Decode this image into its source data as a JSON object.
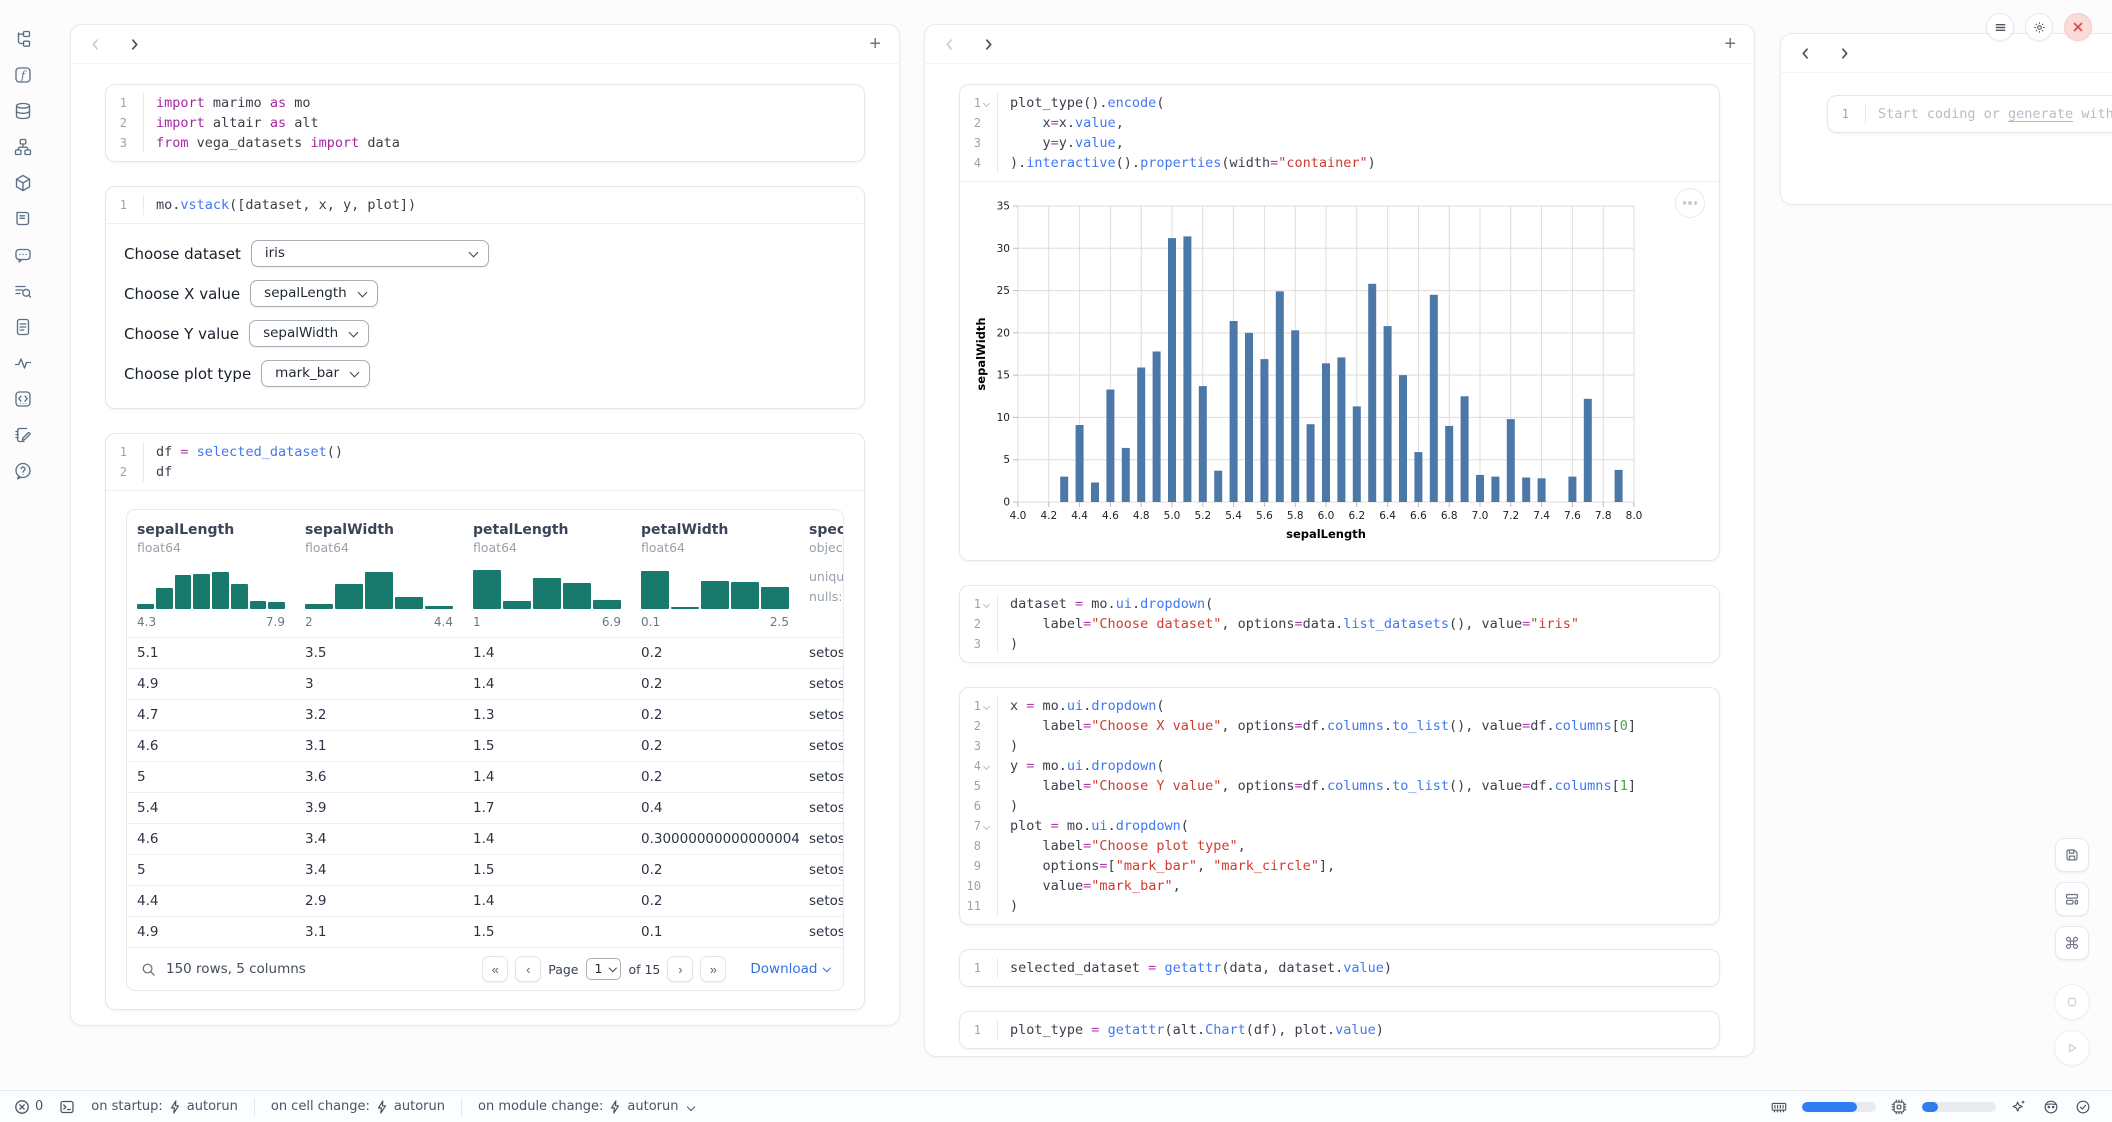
{
  "app": {
    "accent": "#2d7ff0",
    "bar_color": "#4c78a8",
    "hist_color": "#177a6c",
    "close_red": "#e24444"
  },
  "sidebar": {
    "icons": [
      "file-tree",
      "functions",
      "database",
      "dependency-graph",
      "package",
      "logs",
      "ai-chat",
      "search-list",
      "document",
      "pulse",
      "code-box",
      "scratchpad",
      "help"
    ]
  },
  "left": {
    "cells": {
      "imports": [
        {
          "n": 1,
          "tokens": [
            [
              "kw",
              "import"
            ],
            [
              "t",
              " marimo "
            ],
            [
              "kw",
              "as"
            ],
            [
              "t",
              " mo"
            ]
          ]
        },
        {
          "n": 2,
          "tokens": [
            [
              "kw",
              "import"
            ],
            [
              "t",
              " altair "
            ],
            [
              "kw",
              "as"
            ],
            [
              "t",
              " alt"
            ]
          ]
        },
        {
          "n": 3,
          "tokens": [
            [
              "kw",
              "from"
            ],
            [
              "t",
              " vega_datasets "
            ],
            [
              "kw",
              "import"
            ],
            [
              "t",
              " data"
            ]
          ]
        }
      ],
      "vstack": [
        {
          "n": 1,
          "tokens": [
            [
              "t",
              "mo."
            ],
            [
              "fn",
              "vstack"
            ],
            [
              "t",
              "([dataset, x, y, plot])"
            ]
          ]
        }
      ],
      "df": [
        {
          "n": 1,
          "tokens": [
            [
              "t",
              "df "
            ],
            [
              "op",
              "="
            ],
            [
              "t",
              " "
            ],
            [
              "fn",
              "selected_dataset"
            ],
            [
              "t",
              "()"
            ]
          ]
        },
        {
          "n": 2,
          "tokens": [
            [
              "t",
              "df"
            ]
          ]
        }
      ]
    },
    "controls": [
      {
        "label": "Choose dataset",
        "value": "iris"
      },
      {
        "label": "Choose X value",
        "value": "sepalLength"
      },
      {
        "label": "Choose Y value",
        "value": "sepalWidth"
      },
      {
        "label": "Choose plot type",
        "value": "mark_bar"
      }
    ]
  },
  "middle": {
    "cells": {
      "plot": [
        {
          "n": 1,
          "fold": true,
          "tokens": [
            [
              "t",
              "plot_type()."
            ],
            [
              "fn",
              "encode"
            ],
            [
              "t",
              "("
            ]
          ]
        },
        {
          "n": 2,
          "tokens": [
            [
              "t",
              "    x"
            ],
            [
              "op",
              "="
            ],
            [
              "t",
              "x."
            ],
            [
              "fn",
              "value"
            ],
            [
              "t",
              ","
            ]
          ]
        },
        {
          "n": 3,
          "tokens": [
            [
              "t",
              "    y"
            ],
            [
              "op",
              "="
            ],
            [
              "t",
              "y."
            ],
            [
              "fn",
              "value"
            ],
            [
              "t",
              ","
            ]
          ]
        },
        {
          "n": 4,
          "tokens": [
            [
              "t",
              ")."
            ],
            [
              "fn",
              "interactive"
            ],
            [
              "t",
              "()."
            ],
            [
              "fn",
              "properties"
            ],
            [
              "t",
              "(width"
            ],
            [
              "op",
              "="
            ],
            [
              "str",
              "\"container\""
            ],
            [
              "t",
              ")"
            ]
          ]
        }
      ],
      "dataset": [
        {
          "n": 1,
          "fold": true,
          "tokens": [
            [
              "t",
              "dataset "
            ],
            [
              "op",
              "="
            ],
            [
              "t",
              " mo."
            ],
            [
              "fn",
              "ui"
            ],
            [
              "t",
              "."
            ],
            [
              "fn",
              "dropdown"
            ],
            [
              "t",
              "("
            ]
          ]
        },
        {
          "n": 2,
          "tokens": [
            [
              "t",
              "    label"
            ],
            [
              "op",
              "="
            ],
            [
              "str",
              "\"Choose dataset\""
            ],
            [
              "t",
              ", options"
            ],
            [
              "op",
              "="
            ],
            [
              "t",
              "data."
            ],
            [
              "fn",
              "list_datasets"
            ],
            [
              "t",
              "(), value"
            ],
            [
              "op",
              "="
            ],
            [
              "str",
              "\"iris\""
            ]
          ]
        },
        {
          "n": 3,
          "tokens": [
            [
              "t",
              ")"
            ]
          ]
        }
      ],
      "xyplot": [
        {
          "n": 1,
          "fold": true,
          "tokens": [
            [
              "t",
              "x "
            ],
            [
              "op",
              "="
            ],
            [
              "t",
              " mo."
            ],
            [
              "fn",
              "ui"
            ],
            [
              "t",
              "."
            ],
            [
              "fn",
              "dropdown"
            ],
            [
              "t",
              "("
            ]
          ]
        },
        {
          "n": 2,
          "tokens": [
            [
              "t",
              "    label"
            ],
            [
              "op",
              "="
            ],
            [
              "str",
              "\"Choose X value\""
            ],
            [
              "t",
              ", options"
            ],
            [
              "op",
              "="
            ],
            [
              "t",
              "df."
            ],
            [
              "fn",
              "columns"
            ],
            [
              "t",
              "."
            ],
            [
              "fn",
              "to_list"
            ],
            [
              "t",
              "(), value"
            ],
            [
              "op",
              "="
            ],
            [
              "t",
              "df."
            ],
            [
              "fn",
              "columns"
            ],
            [
              "t",
              "["
            ],
            [
              "num",
              "0"
            ],
            [
              "t",
              "]"
            ]
          ]
        },
        {
          "n": 3,
          "tokens": [
            [
              "t",
              ")"
            ]
          ]
        },
        {
          "n": 4,
          "fold": true,
          "tokens": [
            [
              "t",
              "y "
            ],
            [
              "op",
              "="
            ],
            [
              "t",
              " mo."
            ],
            [
              "fn",
              "ui"
            ],
            [
              "t",
              "."
            ],
            [
              "fn",
              "dropdown"
            ],
            [
              "t",
              "("
            ]
          ]
        },
        {
          "n": 5,
          "tokens": [
            [
              "t",
              "    label"
            ],
            [
              "op",
              "="
            ],
            [
              "str",
              "\"Choose Y value\""
            ],
            [
              "t",
              ", options"
            ],
            [
              "op",
              "="
            ],
            [
              "t",
              "df."
            ],
            [
              "fn",
              "columns"
            ],
            [
              "t",
              "."
            ],
            [
              "fn",
              "to_list"
            ],
            [
              "t",
              "(), value"
            ],
            [
              "op",
              "="
            ],
            [
              "t",
              "df."
            ],
            [
              "fn",
              "columns"
            ],
            [
              "t",
              "["
            ],
            [
              "num",
              "1"
            ],
            [
              "t",
              "]"
            ]
          ]
        },
        {
          "n": 6,
          "tokens": [
            [
              "t",
              ")"
            ]
          ]
        },
        {
          "n": 7,
          "fold": true,
          "tokens": [
            [
              "t",
              "plot "
            ],
            [
              "op",
              "="
            ],
            [
              "t",
              " mo."
            ],
            [
              "fn",
              "ui"
            ],
            [
              "t",
              "."
            ],
            [
              "fn",
              "dropdown"
            ],
            [
              "t",
              "("
            ]
          ]
        },
        {
          "n": 8,
          "tokens": [
            [
              "t",
              "    label"
            ],
            [
              "op",
              "="
            ],
            [
              "str",
              "\"Choose plot type\""
            ],
            [
              "t",
              ","
            ]
          ]
        },
        {
          "n": 9,
          "tokens": [
            [
              "t",
              "    options"
            ],
            [
              "op",
              "="
            ],
            [
              "t",
              "["
            ],
            [
              "str",
              "\"mark_bar\""
            ],
            [
              "t",
              ", "
            ],
            [
              "str",
              "\"mark_circle\""
            ],
            [
              "t",
              "],"
            ]
          ]
        },
        {
          "n": 10,
          "tokens": [
            [
              "t",
              "    value"
            ],
            [
              "op",
              "="
            ],
            [
              "str",
              "\"mark_bar\""
            ],
            [
              "t",
              ","
            ]
          ]
        },
        {
          "n": 11,
          "tokens": [
            [
              "t",
              ")"
            ]
          ]
        }
      ],
      "selected": [
        {
          "n": 1,
          "tokens": [
            [
              "t",
              "selected_dataset "
            ],
            [
              "op",
              "="
            ],
            [
              "t",
              " "
            ],
            [
              "fn",
              "getattr"
            ],
            [
              "t",
              "(data, dataset."
            ],
            [
              "fn",
              "value"
            ],
            [
              "t",
              ")"
            ]
          ]
        }
      ],
      "plot_type": [
        {
          "n": 1,
          "tokens": [
            [
              "t",
              "plot_type "
            ],
            [
              "op",
              "="
            ],
            [
              "t",
              " "
            ],
            [
              "fn",
              "getattr"
            ],
            [
              "t",
              "(alt."
            ],
            [
              "fn",
              "Chart"
            ],
            [
              "t",
              "(df), plot."
            ],
            [
              "fn",
              "value"
            ],
            [
              "t",
              ")"
            ]
          ]
        }
      ]
    }
  },
  "right": {
    "cells": {
      "empty": [
        {
          "n": 1,
          "tokens": [
            [
              "ph",
              "Start coding or "
            ],
            [
              "phu",
              "generate"
            ],
            [
              "ph",
              " with"
            ]
          ]
        }
      ]
    }
  },
  "table": {
    "columns": [
      {
        "name": "sepalLength",
        "type": "float64",
        "min": "4.3",
        "max": "7.9",
        "hist": [
          0.13,
          0.5,
          0.82,
          0.84,
          0.88,
          0.6,
          0.2,
          0.17
        ]
      },
      {
        "name": "sepalWidth",
        "type": "float64",
        "min": "2",
        "max": "4.4",
        "hist": [
          0.12,
          0.6,
          0.88,
          0.28,
          0.06
        ]
      },
      {
        "name": "petalLength",
        "type": "float64",
        "min": "1",
        "max": "6.9",
        "hist": [
          0.92,
          0.2,
          0.75,
          0.62,
          0.22
        ]
      },
      {
        "name": "petalWidth",
        "type": "float64",
        "min": "0.1",
        "max": "2.5",
        "hist": [
          0.9,
          0.05,
          0.66,
          0.64,
          0.52
        ]
      },
      {
        "name": "species",
        "type": "object",
        "meta": [
          "unique:",
          "nulls:"
        ]
      }
    ],
    "rows": [
      [
        "5.1",
        "3.5",
        "1.4",
        "0.2",
        "setosa"
      ],
      [
        "4.9",
        "3",
        "1.4",
        "0.2",
        "setosa"
      ],
      [
        "4.7",
        "3.2",
        "1.3",
        "0.2",
        "setosa"
      ],
      [
        "4.6",
        "3.1",
        "1.5",
        "0.2",
        "setosa"
      ],
      [
        "5",
        "3.6",
        "1.4",
        "0.2",
        "setosa"
      ],
      [
        "5.4",
        "3.9",
        "1.7",
        "0.4",
        "setosa"
      ],
      [
        "4.6",
        "3.4",
        "1.4",
        "0.30000000000000004",
        "setosa"
      ],
      [
        "5",
        "3.4",
        "1.5",
        "0.2",
        "setosa"
      ],
      [
        "4.4",
        "2.9",
        "1.4",
        "0.2",
        "setosa"
      ],
      [
        "4.9",
        "3.1",
        "1.5",
        "0.1",
        "setosa"
      ]
    ],
    "footer": {
      "summary": "150 rows, 5 columns",
      "page_label": "Page",
      "page_value": "1",
      "of_label": "of 15",
      "download_label": "Download"
    }
  },
  "chart_data": {
    "type": "bar",
    "title": "",
    "xlabel": "sepalLength",
    "ylabel": "sepalWidth",
    "xlim": [
      4.0,
      8.0
    ],
    "ylim": [
      0,
      35
    ],
    "grid": true,
    "x_tick_labels": [
      "4.0",
      "4.2",
      "4.4",
      "4.6",
      "4.8",
      "5.0",
      "5.2",
      "5.4",
      "5.6",
      "5.8",
      "6.0",
      "6.2",
      "6.4",
      "6.6",
      "6.8",
      "7.0",
      "7.2",
      "7.4",
      "7.6",
      "7.8",
      "8.0"
    ],
    "y_ticks": [
      0,
      5,
      10,
      15,
      20,
      25,
      30,
      35
    ],
    "bar_color": "#4c78a8",
    "x": [
      4.3,
      4.4,
      4.5,
      4.6,
      4.7,
      4.8,
      4.9,
      5.0,
      5.1,
      5.2,
      5.3,
      5.4,
      5.5,
      5.6,
      5.7,
      5.8,
      5.9,
      6.0,
      6.1,
      6.2,
      6.3,
      6.4,
      6.5,
      6.6,
      6.7,
      6.8,
      6.9,
      7.0,
      7.1,
      7.2,
      7.3,
      7.4,
      7.6,
      7.7,
      7.9
    ],
    "y": [
      3.0,
      9.1,
      2.3,
      13.3,
      6.4,
      15.9,
      17.8,
      31.2,
      31.4,
      13.7,
      3.7,
      21.4,
      20.0,
      16.9,
      24.9,
      20.3,
      9.2,
      16.4,
      17.1,
      11.3,
      25.8,
      20.8,
      15.0,
      5.9,
      24.5,
      9.0,
      12.5,
      3.2,
      3.0,
      9.8,
      2.9,
      2.8,
      3.0,
      12.2,
      3.8
    ]
  },
  "statusbar": {
    "error_count": "0",
    "runtime": [
      {
        "label": "on startup:",
        "value": "autorun"
      },
      {
        "label": "on cell change:",
        "value": "autorun"
      },
      {
        "label": "on module change:",
        "value": "autorun"
      }
    ],
    "resources": {
      "ram_pct": 74,
      "cpu_pct": 22
    }
  }
}
